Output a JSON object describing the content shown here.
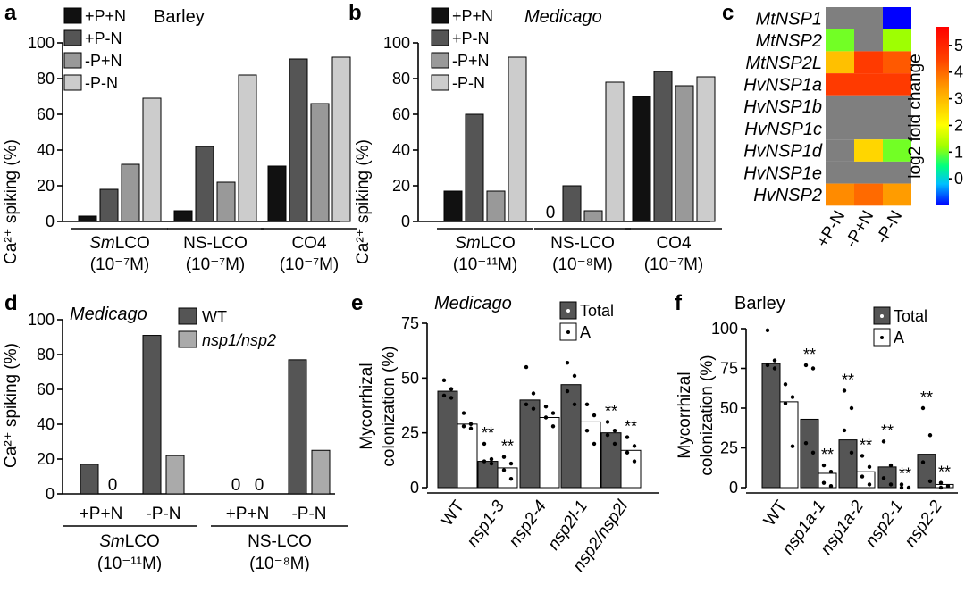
{
  "panels": [
    {
      "id": "a",
      "type": "bar",
      "title": "Barley",
      "title_italic": false,
      "ylabel": "Ca²⁺ spiking (%)",
      "ylim": [
        0,
        100
      ],
      "yticks": [
        0,
        20,
        40,
        60,
        80,
        100
      ],
      "series": [
        {
          "name": "+P+N",
          "color": "#111111"
        },
        {
          "name": "+P-N",
          "color": "#555555"
        },
        {
          "name": "-P+N",
          "color": "#999999"
        },
        {
          "name": "-P-N",
          "color": "#cccccc"
        }
      ],
      "groups": [
        {
          "label": "SmLCO",
          "sub": "(10⁻⁷M)",
          "values": [
            3,
            18,
            32,
            69
          ]
        },
        {
          "label": "NS-LCO",
          "sub": "(10⁻⁷M)",
          "values": [
            6,
            42,
            22,
            82
          ]
        },
        {
          "label": "CO4",
          "sub": "(10⁻⁷M)",
          "values": [
            31,
            91,
            66,
            92
          ]
        }
      ],
      "zero_labels": []
    },
    {
      "id": "b",
      "type": "bar",
      "title": "Medicago",
      "title_italic": true,
      "ylabel": "Ca²⁺ spiking (%)",
      "ylim": [
        0,
        100
      ],
      "yticks": [
        0,
        20,
        40,
        60,
        80,
        100
      ],
      "series": [
        {
          "name": "+P+N",
          "color": "#111111"
        },
        {
          "name": "+P-N",
          "color": "#555555"
        },
        {
          "name": "-P+N",
          "color": "#999999"
        },
        {
          "name": "-P-N",
          "color": "#cccccc"
        }
      ],
      "groups": [
        {
          "label": "SmLCO",
          "sub": "(10⁻¹¹M)",
          "values": [
            17,
            60,
            17,
            92
          ]
        },
        {
          "label": "NS-LCO",
          "sub": "(10⁻⁸M)",
          "values": [
            0,
            20,
            6,
            78
          ]
        },
        {
          "label": "CO4",
          "sub": "(10⁻⁷M)",
          "values": [
            70,
            84,
            76,
            81
          ]
        }
      ],
      "zero_labels": [
        "0"
      ]
    },
    {
      "id": "c",
      "type": "heatmap",
      "rows": [
        "MtNSP1",
        "MtNSP2",
        "MtNSP2L",
        "HvNSP1a",
        "HvNSP1b",
        "HvNSP1c",
        "HvNSP1d",
        "HvNSP1e",
        "HvNSP2"
      ],
      "cols": [
        "+P-N",
        "-P+N",
        "-P-N"
      ],
      "values": [
        [
          null,
          null,
          -1.0
        ],
        [
          1.0,
          null,
          1.2
        ],
        [
          2.9,
          4.6,
          4.2
        ],
        [
          4.6,
          4.6,
          4.6
        ],
        [
          null,
          null,
          null
        ],
        [
          null,
          null,
          null
        ],
        [
          null,
          2.6,
          1.0
        ],
        [
          null,
          null,
          null
        ],
        [
          3.6,
          4.0,
          3.4
        ]
      ],
      "colorbar": {
        "label": "log2 fold change",
        "ticks": [
          0,
          1,
          2,
          3,
          4,
          5
        ],
        "range": [
          -1,
          5.7
        ]
      },
      "missing_color": "#7f7f7f"
    },
    {
      "id": "d",
      "type": "bar",
      "title": "Medicago",
      "title_italic": true,
      "ylabel": "Ca²⁺ spiking (%)",
      "ylim": [
        0,
        100
      ],
      "yticks": [
        0,
        20,
        40,
        60,
        80,
        100
      ],
      "series": [
        {
          "name": "WT",
          "color": "#555555"
        },
        {
          "name": "nsp1/nsp2",
          "color": "#aaaaaa"
        }
      ],
      "groups": [
        {
          "label": "+P+N",
          "values": [
            17,
            0
          ]
        },
        {
          "label": "-P-N",
          "values": [
            91,
            22
          ]
        },
        {
          "label": "+P+N",
          "values": [
            0,
            0
          ]
        },
        {
          "label": "-P-N",
          "values": [
            77,
            25
          ]
        }
      ],
      "super_groups": [
        {
          "label": "SmLCO",
          "sub": "(10⁻¹¹M)"
        },
        {
          "label": "NS-LCO",
          "sub": "(10⁻⁸M)"
        }
      ],
      "zero_labels": [
        "0"
      ]
    },
    {
      "id": "e",
      "type": "bar",
      "title": "Medicago",
      "title_italic": true,
      "ylabel": "Mycorrhizal colonization (%)",
      "ylim": [
        0,
        75
      ],
      "yticks": [
        0,
        25,
        50,
        75
      ],
      "series": [
        {
          "name": "Total",
          "color": "#555555"
        },
        {
          "name": "A",
          "color": "#ffffff"
        }
      ],
      "categories": [
        "WT",
        "nsp1-3",
        "nsp2-4",
        "nsp2l-1",
        "nsp2/nsp2l"
      ],
      "values": [
        [
          44,
          29
        ],
        [
          12,
          9
        ],
        [
          40,
          32
        ],
        [
          47,
          30
        ],
        [
          25,
          17
        ]
      ],
      "points": [
        [
          [
            49,
            45,
            42,
            41
          ],
          [
            34,
            29,
            28,
            27
          ]
        ],
        [
          [
            20,
            13,
            12,
            11
          ],
          [
            14,
            11,
            8,
            4
          ]
        ],
        [
          [
            55,
            43,
            38,
            36
          ],
          [
            37,
            34,
            32,
            28
          ]
        ],
        [
          [
            57,
            51,
            44,
            38
          ],
          [
            38,
            33,
            26,
            20
          ]
        ],
        [
          [
            30,
            26,
            24,
            20
          ],
          [
            23,
            19,
            16,
            12
          ]
        ]
      ],
      "signif": [
        "",
        "**",
        "",
        "",
        "**"
      ],
      "signif_a": [
        "",
        "**",
        "",
        "",
        "**"
      ]
    },
    {
      "id": "f",
      "type": "bar",
      "title": "Barley",
      "title_italic": false,
      "ylabel": "Mycorrhizal colonization (%)",
      "ylim": [
        0,
        100
      ],
      "yticks": [
        0,
        25,
        50,
        75,
        100
      ],
      "series": [
        {
          "name": "Total",
          "color": "#555555"
        },
        {
          "name": "A",
          "color": "#ffffff"
        }
      ],
      "categories": [
        "WT",
        "nsp1a-1",
        "nsp1a-2",
        "nsp2-1",
        "nsp2-2"
      ],
      "values": [
        [
          78,
          54
        ],
        [
          43,
          9
        ],
        [
          30,
          10
        ],
        [
          13,
          0
        ],
        [
          21,
          2
        ]
      ],
      "points": [
        [
          [
            99,
            80,
            77,
            75
          ],
          [
            65,
            57,
            53,
            26
          ]
        ],
        [
          [
            77,
            75,
            28,
            22
          ],
          [
            14,
            10,
            3,
            1
          ]
        ],
        [
          [
            61,
            50,
            36,
            22
          ],
          [
            20,
            13,
            7,
            2
          ]
        ],
        [
          [
            29,
            14,
            6,
            2
          ],
          [
            2,
            0,
            0
          ]
        ],
        [
          [
            50,
            33,
            16,
            4
          ],
          [
            3,
            1,
            0
          ]
        ]
      ],
      "signif": [
        "",
        "**",
        "**",
        "**",
        "**"
      ],
      "signif_a": [
        "",
        "**",
        "**",
        "**",
        "**"
      ]
    }
  ]
}
